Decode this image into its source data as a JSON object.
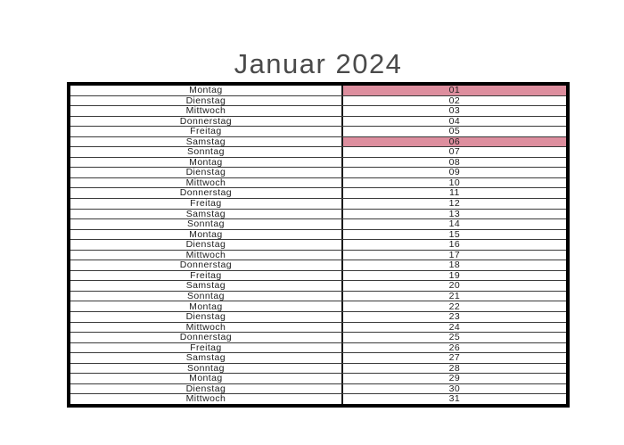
{
  "calendar": {
    "title": "Januar 2024",
    "month": "Januar",
    "year": "2024",
    "holiday_highlight_color": "#dd8e9e",
    "days": [
      {
        "name": "Montag",
        "num": "01",
        "holiday": true
      },
      {
        "name": "Dienstag",
        "num": "02",
        "holiday": false
      },
      {
        "name": "Mittwoch",
        "num": "03",
        "holiday": false
      },
      {
        "name": "Donnerstag",
        "num": "04",
        "holiday": false
      },
      {
        "name": "Freitag",
        "num": "05",
        "holiday": false
      },
      {
        "name": "Samstag",
        "num": "06",
        "holiday": true
      },
      {
        "name": "Sonntag",
        "num": "07",
        "holiday": false
      },
      {
        "name": "Montag",
        "num": "08",
        "holiday": false
      },
      {
        "name": "Dienstag",
        "num": "09",
        "holiday": false
      },
      {
        "name": "Mittwoch",
        "num": "10",
        "holiday": false
      },
      {
        "name": "Donnerstag",
        "num": "11",
        "holiday": false
      },
      {
        "name": "Freitag",
        "num": "12",
        "holiday": false
      },
      {
        "name": "Samstag",
        "num": "13",
        "holiday": false
      },
      {
        "name": "Sonntag",
        "num": "14",
        "holiday": false
      },
      {
        "name": "Montag",
        "num": "15",
        "holiday": false
      },
      {
        "name": "Dienstag",
        "num": "16",
        "holiday": false
      },
      {
        "name": "Mittwoch",
        "num": "17",
        "holiday": false
      },
      {
        "name": "Donnerstag",
        "num": "18",
        "holiday": false
      },
      {
        "name": "Freitag",
        "num": "19",
        "holiday": false
      },
      {
        "name": "Samstag",
        "num": "20",
        "holiday": false
      },
      {
        "name": "Sonntag",
        "num": "21",
        "holiday": false
      },
      {
        "name": "Montag",
        "num": "22",
        "holiday": false
      },
      {
        "name": "Dienstag",
        "num": "23",
        "holiday": false
      },
      {
        "name": "Mittwoch",
        "num": "24",
        "holiday": false
      },
      {
        "name": "Donnerstag",
        "num": "25",
        "holiday": false
      },
      {
        "name": "Freitag",
        "num": "26",
        "holiday": false
      },
      {
        "name": "Samstag",
        "num": "27",
        "holiday": false
      },
      {
        "name": "Sonntag",
        "num": "28",
        "holiday": false
      },
      {
        "name": "Montag",
        "num": "29",
        "holiday": false
      },
      {
        "name": "Dienstag",
        "num": "30",
        "holiday": false
      },
      {
        "name": "Mittwoch",
        "num": "31",
        "holiday": false
      }
    ]
  }
}
